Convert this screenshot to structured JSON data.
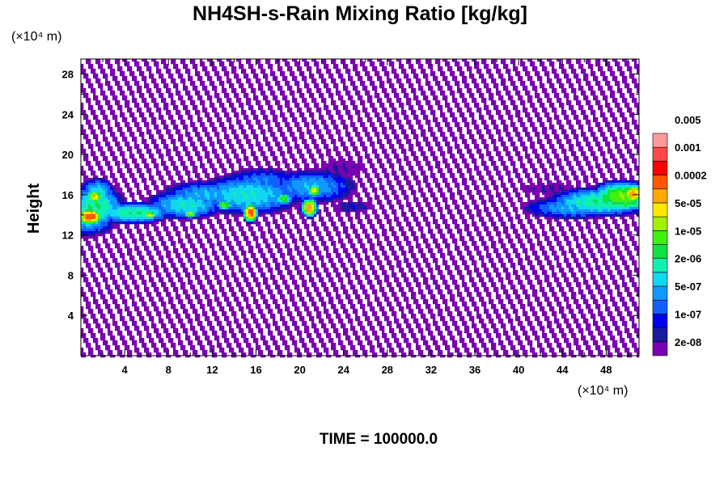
{
  "chart_data": {
    "type": "contour",
    "title": "NH4SH-s-Rain Mixing Ratio [kg/kg]",
    "xlabel": "",
    "ylabel": "Height",
    "x_unit": "(×10⁴ m)",
    "y_unit": "(×10⁴ m)",
    "xlim": [
      0,
      51
    ],
    "ylim": [
      0,
      29.5
    ],
    "xticks": [
      4,
      8,
      12,
      16,
      20,
      24,
      28,
      32,
      36,
      40,
      44,
      48
    ],
    "yticks": [
      4,
      8,
      12,
      16,
      20,
      24,
      28
    ],
    "grid": false,
    "colorbar": {
      "placement": "right",
      "colors": [
        "#7a00b0",
        "#1a1aa0",
        "#0000ee",
        "#1060ff",
        "#1098ff",
        "#10d8f0",
        "#10f0b0",
        "#10e040",
        "#40f010",
        "#a0f000",
        "#ffe800",
        "#ffa800",
        "#ff5800",
        "#ff0000",
        "#ff4848",
        "#ff9a9a"
      ],
      "labels": [
        "2e-08",
        "1e-07",
        "5e-07",
        "2e-06",
        "1e-05",
        "5e-05",
        "0.0002",
        "0.001",
        "0.005"
      ]
    },
    "features": [
      {
        "x_range": [
          0,
          26.5
        ],
        "y_range": [
          12.5,
          19.8
        ],
        "peak_level": 13
      },
      {
        "x_range": [
          40.5,
          51
        ],
        "y_range": [
          13.5,
          17.5
        ],
        "peak_level": 12
      }
    ],
    "footer": "TIME = 100000.0"
  }
}
